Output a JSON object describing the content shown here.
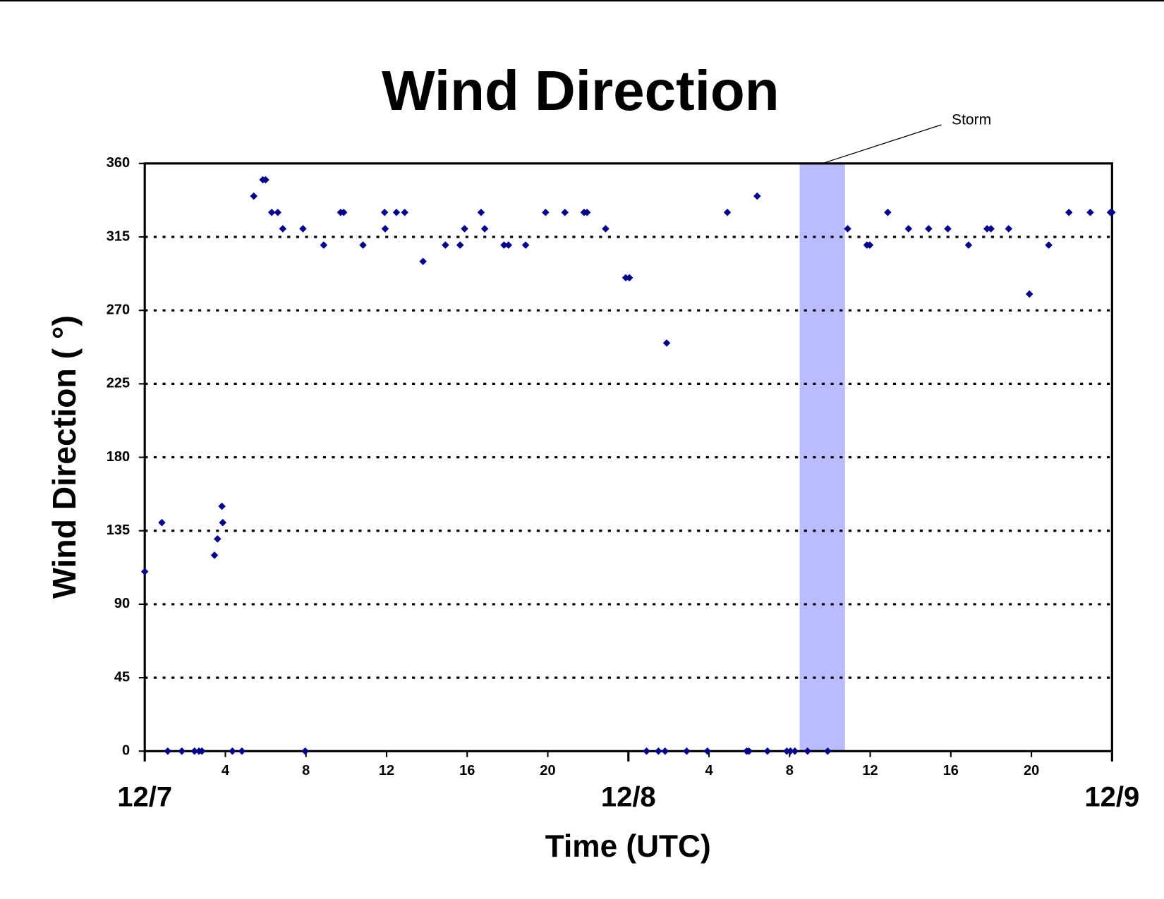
{
  "chart_data": {
    "type": "scatter",
    "title": "Wind Direction",
    "ylabel": "Wind Direction ( °)",
    "xlabel": "Time (UTC)",
    "xlim": [
      0,
      48
    ],
    "ylim": [
      0,
      360
    ],
    "yticks": [
      0,
      45,
      90,
      135,
      180,
      225,
      270,
      315,
      360
    ],
    "xticks": [
      4,
      8,
      12,
      16,
      20,
      {
        "value": 28,
        "label": "4"
      },
      {
        "value": 32,
        "label": "8"
      },
      {
        "value": 36,
        "label": "12"
      },
      {
        "value": 40,
        "label": "16"
      },
      {
        "value": 44,
        "label": "20"
      }
    ],
    "date_labels": [
      {
        "value": 0,
        "label": "12/7"
      },
      {
        "value": 24,
        "label": "12/8"
      },
      {
        "value": 48,
        "label": "12/9"
      }
    ],
    "grid": true,
    "annotation": {
      "text": "Storm",
      "x_range": [
        32.5,
        34.75
      ]
    },
    "series": [
      {
        "name": "Wind Direction",
        "color": "#00008b",
        "x": [
          0,
          0.85,
          1.14,
          1.84,
          2.47,
          2.69,
          2.84,
          3.46,
          3.61,
          3.87,
          3.83,
          4.35,
          4.82,
          5.41,
          5.86,
          6.0,
          6.3,
          6.6,
          6.85,
          7.85,
          7.96,
          8.88,
          9.72,
          9.87,
          10.83,
          11.9,
          11.93,
          12.49,
          12.9,
          13.81,
          14.92,
          15.65,
          15.87,
          16.69,
          16.87,
          17.83,
          18.05,
          18.9,
          19.89,
          20.85,
          21.8,
          21.95,
          22.87,
          23.87,
          24.05,
          24.9,
          25.49,
          25.82,
          25.9,
          26.89,
          27.92,
          28.91,
          29.87,
          29.98,
          30.39,
          30.9,
          31.86,
          32.04,
          32.26,
          32.89,
          33.89,
          34.88,
          35.84,
          35.98,
          36.87,
          37.9,
          38.9,
          39.85,
          40.88,
          41.8,
          41.99,
          42.87,
          43.9,
          44.86,
          45.86,
          46.92,
          47.92,
          48
        ],
        "values": [
          110,
          140,
          0,
          0,
          0,
          0,
          0,
          120,
          130,
          140,
          150,
          0,
          0,
          340,
          350,
          350,
          330,
          330,
          320,
          320,
          0,
          310,
          330,
          330,
          310,
          330,
          320,
          330,
          330,
          300,
          310,
          310,
          320,
          330,
          320,
          310,
          310,
          310,
          330,
          330,
          330,
          330,
          320,
          290,
          290,
          0,
          0,
          0,
          250,
          0,
          0,
          330,
          0,
          0,
          340,
          0,
          0,
          0,
          0,
          0,
          0,
          320,
          310,
          310,
          330,
          320,
          320,
          320,
          310,
          320,
          320,
          320,
          280,
          310,
          330,
          330,
          330,
          330
        ]
      }
    ]
  }
}
